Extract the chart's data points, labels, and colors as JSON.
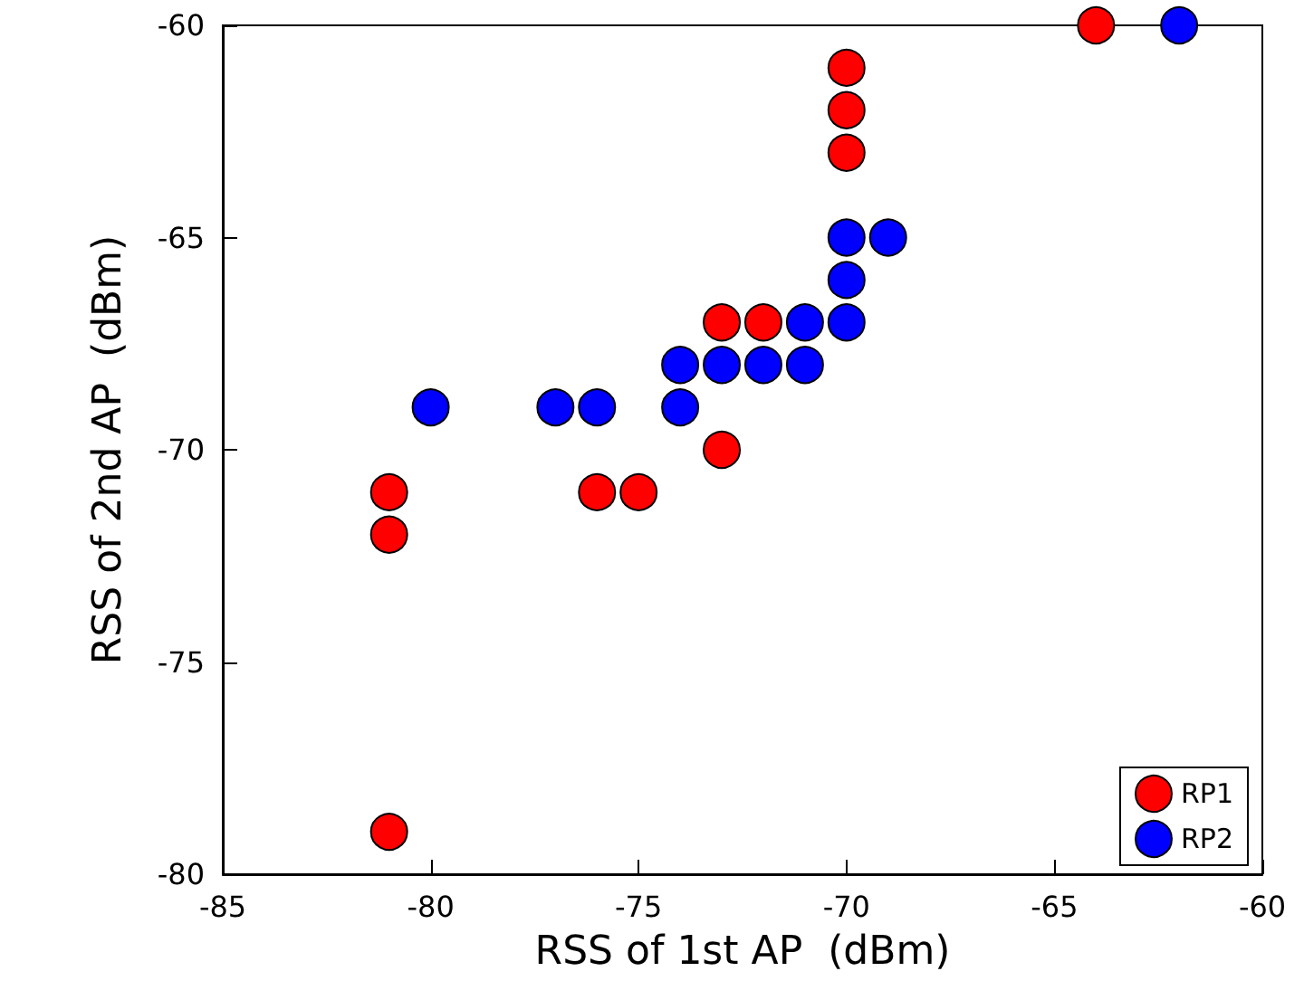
{
  "chart_data": {
    "type": "scatter",
    "xlabel": "RSS of 1st AP  (dBm)",
    "ylabel": "RSS of 2nd AP  (dBm)",
    "xlim": [
      -85,
      -60
    ],
    "xticks": [
      -85,
      -80,
      -75,
      -70,
      -65,
      -60
    ],
    "ylim": [
      -80,
      -60
    ],
    "yticks": [
      -80,
      -75,
      -70,
      -65,
      -60
    ],
    "grid": false,
    "legend": "bottom right",
    "marker": "circle",
    "series": [
      {
        "name": "RP1",
        "color": "#ff0000",
        "x": [
          -81,
          -81,
          -81,
          -76,
          -75,
          -73,
          -72,
          -73,
          -70,
          -70,
          -70,
          -64
        ],
        "values": [
          -71,
          -72,
          -79,
          -71,
          -71,
          -67,
          -67,
          -70,
          -61,
          -62,
          -63,
          -60
        ]
      },
      {
        "name": "RP2",
        "color": "#0000ff",
        "x": [
          -80,
          -77,
          -76,
          -74,
          -74,
          -73,
          -72,
          -71,
          -71,
          -70,
          -70,
          -70,
          -69,
          -62
        ],
        "values": [
          -69,
          -69,
          -69,
          -68,
          -69,
          -68,
          -68,
          -67,
          -68,
          -67,
          -66,
          -65,
          -65,
          -60
        ]
      }
    ]
  }
}
